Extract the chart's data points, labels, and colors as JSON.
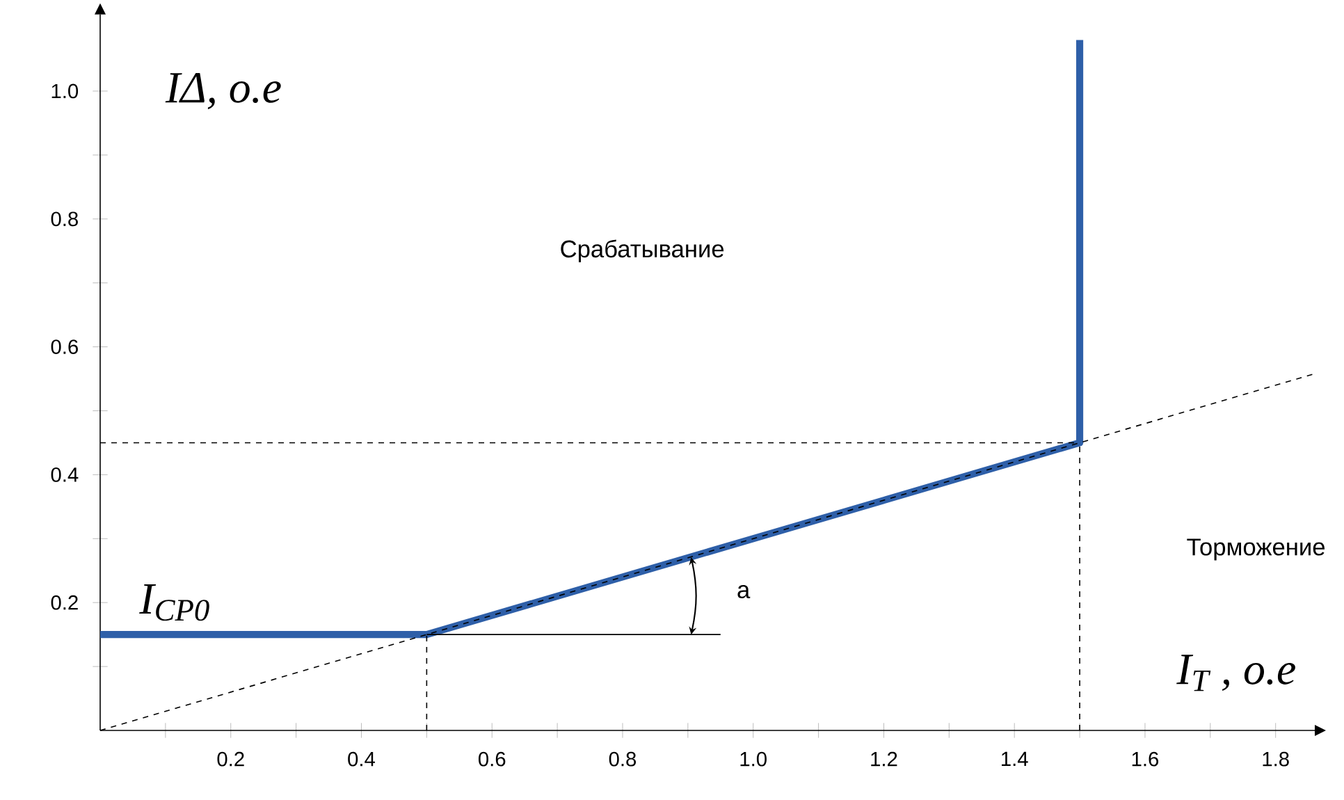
{
  "chart_data": {
    "type": "line",
    "xlabel": "I$_{T}$ , o.e",
    "ylabel": "IΔ, o.e",
    "xlim": [
      0,
      1.86
    ],
    "ylim": [
      0,
      1.12
    ],
    "xticks": [
      {
        "value": 0.1,
        "label": null
      },
      0.2,
      {
        "value": 0.3,
        "label": null
      },
      0.4,
      {
        "value": 0.5,
        "label": null
      },
      0.6,
      {
        "value": 0.7,
        "label": null
      },
      0.8,
      {
        "value": 0.9,
        "label": null
      },
      {
        "value": 1,
        "label": "1.0"
      },
      {
        "value": 1.1,
        "label": null
      },
      1.2,
      {
        "value": 1.3,
        "label": null
      },
      1.4,
      {
        "value": 1.5,
        "label": null
      },
      1.6,
      {
        "value": 1.7,
        "label": null
      },
      1.8
    ],
    "yticks": [
      {
        "value": 0.1,
        "label": null
      },
      0.2,
      {
        "value": 0.3,
        "label": null
      },
      0.4,
      {
        "value": 0.5,
        "label": null
      },
      0.6,
      {
        "value": 0.7,
        "label": null
      },
      0.8,
      {
        "value": 0.9,
        "label": null
      },
      {
        "value": 1,
        "label": "1.0"
      }
    ],
    "series": [
      {
        "color": "#2e5fa8",
        "x": [
          0,
          0.5,
          1.5,
          1.5
        ],
        "values": [
          0.15,
          0.15,
          0.45,
          1.08
        ]
      },
      {
        "color": "#000000",
        "x": [
          0,
          1.86
        ],
        "values": [
          0,
          0.558
        ],
        "line_style": "dashed"
      },
      {
        "color": "#000000",
        "x": [
          0,
          1.5
        ],
        "values": [
          0.45,
          0.45
        ],
        "line_style": "dashed"
      },
      {
        "color": "#000000",
        "x": [
          0.5,
          0.5
        ],
        "values": [
          0,
          0.15
        ],
        "line_style": "dashed"
      },
      {
        "color": "#000000",
        "x": [
          1.5,
          1.5
        ],
        "values": [
          0,
          0.45
        ],
        "line_style": "dashed"
      },
      {
        "color": "#000000",
        "x": [
          0.5,
          0.95
        ],
        "values": [
          0.15,
          0.15
        ],
        "line_style": "solid"
      }
    ],
    "annotations": [
      "I$_{CP0}$",
      "Срабатывание",
      "Торможение",
      "a"
    ]
  }
}
